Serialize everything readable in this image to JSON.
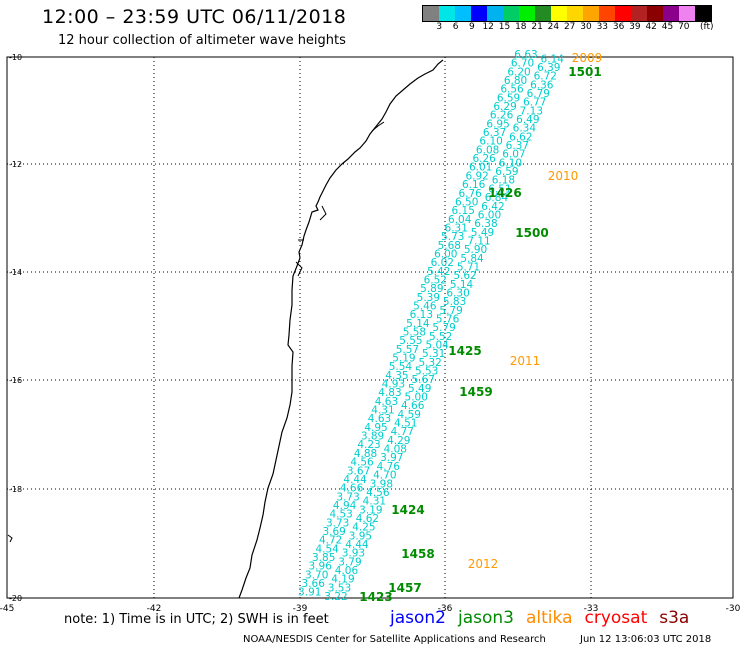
{
  "header": {
    "title": "12:00 – 23:59 UTC 06/11/2018",
    "subtitle": "12 hour collection of altimeter wave heights"
  },
  "legend": {
    "colors": [
      "#808080",
      "#00e5e5",
      "#00bfff",
      "#0000ff",
      "#00b2ee",
      "#00cd66",
      "#00ee00",
      "#228b22",
      "#ffff00",
      "#ffd700",
      "#ffa500",
      "#ff4500",
      "#ff0000",
      "#b22222",
      "#8b0000",
      "#8b008b",
      "#ee82ee",
      "#000000"
    ],
    "labels": [
      "3",
      "6",
      "9",
      "12",
      "15",
      "18",
      "21",
      "24",
      "27",
      "30",
      "33",
      "36",
      "39",
      "42",
      "45",
      "70"
    ],
    "unit": "(ft)"
  },
  "axes": {
    "lat_labels": [
      "-10",
      "-12",
      "-14",
      "-16",
      "-18",
      "-20"
    ],
    "lon_labels": [
      "-45",
      "-42",
      "-39",
      "-36",
      "-33",
      "-30"
    ]
  },
  "passes": {
    "jason3": {
      "color": "#00cdcd",
      "heights": [
        "6.63",
        "6.14",
        "6.70",
        "6.39",
        "6.20",
        "6.72",
        "6.80",
        "6.36",
        "6.56",
        "6.79",
        "6.59",
        "6.77",
        "6.29",
        "7.13",
        "6.26",
        "6.49",
        "6.95",
        "6.34",
        "6.37",
        "6.62",
        "6.10",
        "6.37",
        "6.08",
        "6.07",
        "6.26",
        "6.10",
        "6.01",
        "6.59",
        "6.92",
        "6.18",
        "6.16",
        "6.51",
        "6.76",
        "6.84",
        "6.50",
        "6.42",
        "6.15",
        "6.00",
        "6.04",
        "6.38",
        "6.31",
        "5.49",
        "5.73",
        "7.11",
        "5.68",
        "5.90",
        "6.00",
        "5.84",
        "6.02",
        "5.71",
        "5.42",
        "5.62",
        "6.52",
        "5.14",
        "5.89",
        "6.30",
        "5.39",
        "5.83",
        "5.46",
        "5.79",
        "6.13",
        "5.76",
        "5.14",
        "5.79",
        "5.58",
        "5.52",
        "5.55",
        "5.04",
        "5.57",
        "5.31",
        "5.19",
        "5.32",
        "5.54",
        "5.53",
        "4.35",
        "5.67",
        "4.93",
        "5.49",
        "4.83",
        "5.00",
        "4.63",
        "4.66",
        "4.31",
        "4.59",
        "4.63",
        "4.51",
        "4.95",
        "4.77",
        "3.89",
        "4.29",
        "4.23",
        "4.08",
        "4.88",
        "3.97",
        "4.56",
        "4.76",
        "3.67",
        "4.70",
        "4.44",
        "3.98",
        "4.66",
        "4.56",
        "3.73",
        "4.31",
        "4.94",
        "3.19",
        "4.53",
        "4.62",
        "3.73",
        "4.25",
        "3.69",
        "3.95",
        "4.72",
        "4.44",
        "4.54",
        "3.93",
        "3.85",
        "3.79",
        "3.96",
        "4.06",
        "3.70",
        "4.19",
        "3.66",
        "3.53",
        "3.91",
        "3.22"
      ]
    },
    "time_labels_green": [
      "1501",
      "1426",
      "1500",
      "1425",
      "1459",
      "1424",
      "1458",
      "1457",
      "1423"
    ],
    "time_labels_orange": [
      "2009",
      "2010",
      "2011",
      "2012"
    ]
  },
  "footer": {
    "note": "note: 1) Time is in UTC; 2) SWH is in feet",
    "satellites": [
      {
        "name": "jason2",
        "color": "#0000ff"
      },
      {
        "name": "jason3",
        "color": "#008b00"
      },
      {
        "name": "altika",
        "color": "#ff8c00"
      },
      {
        "name": "cryosat",
        "color": "#ff0000"
      },
      {
        "name": "s3a",
        "color": "#8b0000"
      }
    ],
    "credit": "NOAA/NESDIS Center for Satellite Applications and Research",
    "timestamp": "Jun 12 13:06:03 UTC 2018"
  }
}
